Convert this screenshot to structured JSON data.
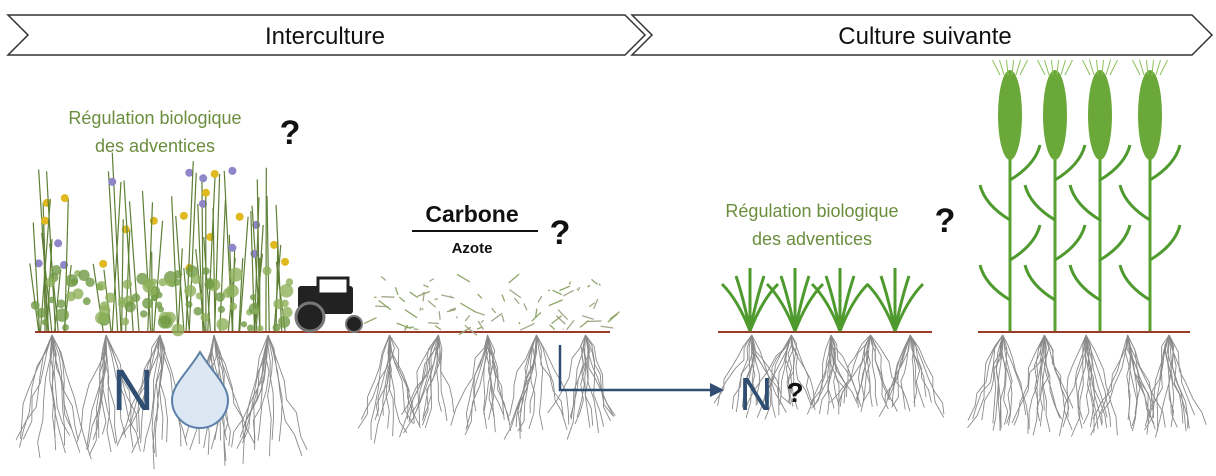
{
  "phases": [
    "Interculture",
    "Culture suivante"
  ],
  "weed_regulation_1": {
    "lines": [
      "Régulation biologique",
      "des adventices"
    ],
    "mark": "?"
  },
  "ratio": {
    "numerator": "Carbone",
    "denominator": "Azote",
    "mark": "?"
  },
  "weed_regulation_2": {
    "lines": [
      "Régulation biologique",
      "des adventices"
    ],
    "mark": "?"
  },
  "nitrogen_1": "N",
  "nitrogen_2": {
    "symbol": "N",
    "mark": "?"
  }
}
